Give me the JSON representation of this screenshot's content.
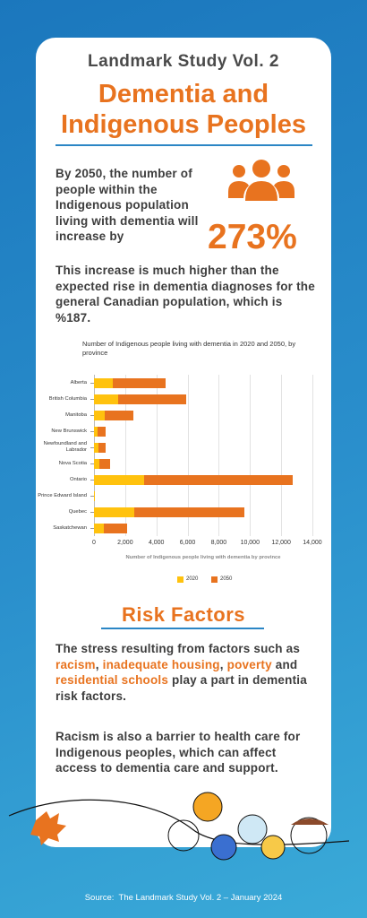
{
  "header": {
    "subtitle": "Landmark Study Vol. 2",
    "title": "Dementia and Indigenous Peoples"
  },
  "intro": {
    "text": "By 2050, the number of people within the Indigenous population living with dementia will increase by",
    "stat": "273%"
  },
  "comparison": "This increase is much higher than the expected rise in dementia diagnoses for the general Canadian population, which is %187.",
  "chart_data": {
    "type": "bar",
    "orientation": "horizontal",
    "title": "Number of Indigenous people living with dementia in 2020 and 2050, by province",
    "x_label": "Number of Indigenous people living with dementia by province",
    "categories": [
      "Alberta",
      "British Columbia",
      "Manitoba",
      "New Brunswick",
      "Newfoundland and Labrador",
      "Nova Scotia",
      "Ontario",
      "Prince Edward Island",
      "Quebec",
      "Saskatchewan"
    ],
    "series": [
      {
        "name": "2020",
        "color": "#ffc20e",
        "values": [
          1200,
          1550,
          700,
          230,
          280,
          330,
          3200,
          30,
          2600,
          650
        ]
      },
      {
        "name": "2050",
        "color": "#e8731f",
        "values": [
          4600,
          5900,
          2500,
          750,
          750,
          1050,
          12750,
          80,
          9650,
          2150
        ]
      }
    ],
    "xlim": [
      0,
      14000
    ],
    "xticks": [
      0,
      {
        "value": 2000,
        "label": "2,000"
      },
      {
        "value": 4000,
        "label": "4,000"
      },
      {
        "value": 6000,
        "label": "6,000"
      },
      {
        "value": 8000,
        "label": "8,000"
      },
      {
        "value": 10000,
        "label": "10,000"
      },
      {
        "value": 12000,
        "label": "12,000"
      },
      {
        "value": 14000,
        "label": "14,000"
      }
    ],
    "grid": true,
    "legend": "bottom"
  },
  "risk": {
    "heading": "Risk Factors",
    "paragraph": [
      "The stress resulting from factors such as ",
      "racism",
      ", ",
      "inadequate housing",
      ", ",
      "poverty",
      " and ",
      "residential schools",
      " play a part in dementia risk factors."
    ],
    "paragraph2": "Racism is also a barrier to health care for Indigenous peoples, which can affect access to dementia care and support."
  },
  "source": "Source:  The Landmark Study Vol. 2 – January 2024"
}
